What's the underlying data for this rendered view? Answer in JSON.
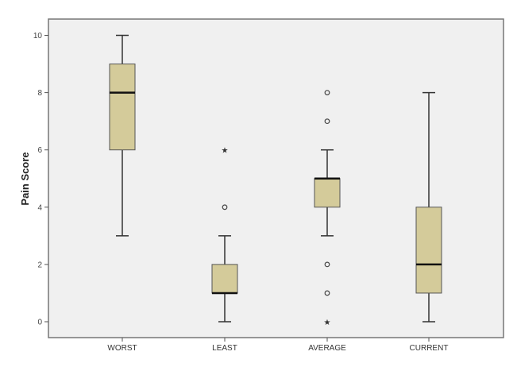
{
  "chart_data": {
    "type": "boxplot",
    "title": "",
    "xlabel": "",
    "ylabel": "Pain Score",
    "ylim": [
      -0.55,
      10.6
    ],
    "yticks": [
      0,
      2,
      4,
      6,
      8,
      10
    ],
    "categories": [
      "WORST",
      "LEAST",
      "AVERAGE",
      "CURRENT"
    ],
    "boxes": [
      {
        "name": "WORST",
        "whisker_low": 3,
        "q1": 6,
        "median": 8,
        "q3": 9,
        "whisker_high": 10,
        "outliers": [],
        "extremes": []
      },
      {
        "name": "LEAST",
        "whisker_low": 0,
        "q1": 1,
        "median": 1,
        "q3": 2,
        "whisker_high": 3,
        "outliers": [
          4
        ],
        "extremes": [
          6
        ]
      },
      {
        "name": "AVERAGE",
        "whisker_low": 3,
        "q1": 4,
        "median": 5,
        "q3": 5,
        "whisker_high": 6,
        "outliers": [
          8,
          7,
          2,
          1
        ],
        "extremes": [
          0
        ]
      },
      {
        "name": "CURRENT",
        "whisker_low": 0,
        "q1": 1,
        "median": 2,
        "q3": 4,
        "whisker_high": 8,
        "outliers": [],
        "extremes": []
      }
    ],
    "grid": false,
    "colors": {
      "box_fill": "#d4cb9a",
      "plot_bg": "#f0f0f0",
      "line": "#333333"
    }
  }
}
